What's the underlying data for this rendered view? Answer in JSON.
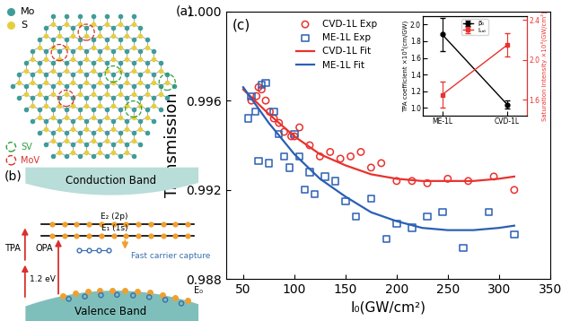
{
  "chart_data": [
    {
      "type": "scatter",
      "panel_label": "(c)",
      "x_label": "I₀(GW/cm²)",
      "y_label": "Transmission",
      "xlim": [
        33,
        350
      ],
      "xticks": [
        50,
        100,
        150,
        200,
        250,
        300,
        350
      ],
      "ylim": [
        0.988,
        1.0
      ],
      "yticks": [
        0.988,
        0.992,
        0.996,
        {
          "value": 1.0,
          "label": "1.000"
        }
      ],
      "grid": false,
      "legend": "upper left",
      "series": [
        {
          "name": "CVD-1L Exp",
          "type": "scatter",
          "marker": "circle",
          "color": "#e8322e",
          "x": [
            58,
            63,
            65,
            68,
            72,
            76,
            80,
            85,
            90,
            97,
            100,
            105,
            115,
            125,
            135,
            145,
            155,
            165,
            175,
            185,
            200,
            215,
            230,
            250,
            270,
            295,
            315
          ],
          "values": [
            0.996,
            0.9962,
            0.9966,
            0.9965,
            0.996,
            0.9955,
            0.9952,
            0.995,
            0.9946,
            0.9944,
            0.9944,
            0.9948,
            0.994,
            0.9935,
            0.9937,
            0.9934,
            0.9935,
            0.9937,
            0.993,
            0.9932,
            0.9924,
            0.9924,
            0.9923,
            0.9925,
            0.9924,
            0.9926,
            0.992
          ]
        },
        {
          "name": "ME-1L Exp",
          "type": "scatter",
          "marker": "square",
          "color": "#2b5fb4",
          "x": [
            55,
            58,
            62,
            65,
            68,
            72,
            75,
            80,
            85,
            90,
            95,
            100,
            105,
            110,
            115,
            120,
            130,
            140,
            150,
            160,
            175,
            190,
            200,
            215,
            230,
            245,
            265,
            290,
            315
          ],
          "values": [
            0.9952,
            0.9962,
            0.9955,
            0.9933,
            0.9967,
            0.9968,
            0.9932,
            0.9955,
            0.9945,
            0.9935,
            0.993,
            0.9945,
            0.9935,
            0.992,
            0.9928,
            0.9918,
            0.9926,
            0.9924,
            0.9915,
            0.9908,
            0.9916,
            0.9898,
            0.9905,
            0.9903,
            0.9908,
            0.991,
            0.9894,
            0.991,
            0.99
          ]
        },
        {
          "name": "CVD-1L Fit",
          "type": "line",
          "line_style": "solid",
          "color": "#e8322e",
          "x": [
            50,
            75,
            100,
            125,
            150,
            175,
            200,
            225,
            250,
            275,
            300,
            315
          ],
          "values": [
            0.9965,
            0.9954,
            0.9944,
            0.9936,
            0.9931,
            0.9927,
            0.9925,
            0.9924,
            0.9924,
            0.9924,
            0.9925,
            0.9926
          ]
        },
        {
          "name": "ME-1L Fit",
          "type": "line",
          "line_style": "solid",
          "color": "#2b5fb4",
          "x": [
            50,
            75,
            100,
            125,
            150,
            175,
            200,
            225,
            250,
            275,
            300,
            315
          ],
          "values": [
            0.9966,
            0.995,
            0.9936,
            0.9925,
            0.9917,
            0.991,
            0.9906,
            0.9903,
            0.9902,
            0.9902,
            0.9903,
            0.9904
          ]
        }
      ]
    },
    {
      "type": "line",
      "categories": [
        "ME-1L",
        "CVD-1L"
      ],
      "y_label": "TPA coefficient ×10³(cm/GW)",
      "y2_label": "Saturation Intensity ×10³(GW/cm²)",
      "ylim": [
        0.91,
        2.1
      ],
      "yticks": [
        1.0,
        1.2,
        1.4,
        1.6,
        1.8,
        2.0
      ],
      "y2lim": [
        1.44,
        2.44
      ],
      "y2ticks": [
        1.6,
        2.0,
        2.4
      ],
      "legend": "upper center",
      "series": [
        {
          "name": "β₀",
          "color": "black",
          "marker": "circle",
          "values": [
            1.88,
            1.04
          ],
          "errors": [
            0.2,
            0.05
          ]
        },
        {
          "name": "Iₛₐₜ",
          "color": "#e8322e",
          "marker": "square",
          "axis": "y2",
          "values": [
            1.65,
            2.15
          ],
          "errors": [
            0.13,
            0.12
          ]
        }
      ]
    }
  ],
  "diagram": {
    "panel_a": {
      "label": "(a)",
      "atoms": [
        {
          "name": "Mo",
          "color": "#3f9c99"
        },
        {
          "name": "S",
          "color": "#e6cf3c"
        }
      ],
      "defects": [
        {
          "name": "SV",
          "color": "#2e9e3e"
        },
        {
          "name": "MoV",
          "color": "#d9302a"
        }
      ]
    },
    "panel_b": {
      "label": "(b)",
      "conduction_band": "Conduction Band",
      "valence_band": "Valence Band",
      "levels": [
        "E₂ (2p)",
        "E₁ (1s)",
        "E₀"
      ],
      "transitions": {
        "tpa": "TPA",
        "opa": "OPA",
        "energy": "1.2 eV"
      },
      "capture": "Fast carrier capture"
    }
  }
}
